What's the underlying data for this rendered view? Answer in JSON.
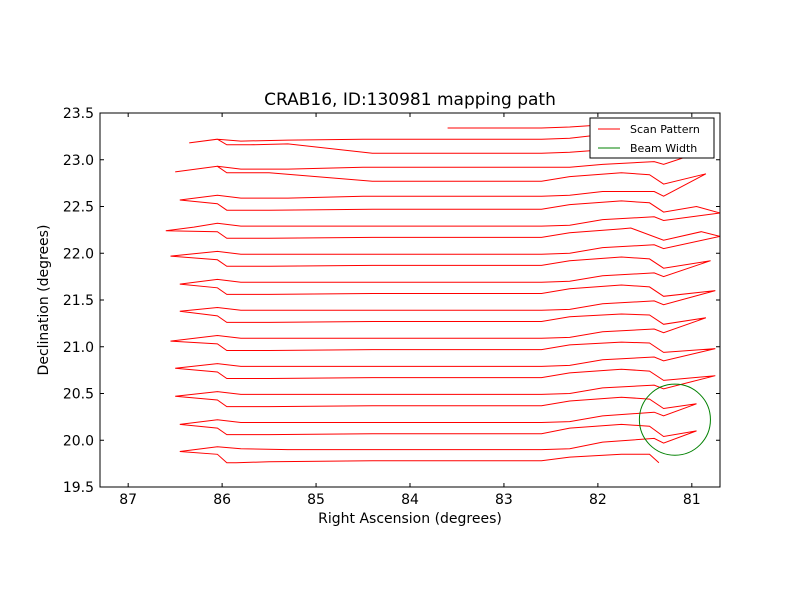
{
  "chart_data": {
    "type": "line",
    "title": "CRAB16, ID:130981 mapping path",
    "xlabel": "Right Ascension (degrees)",
    "ylabel": "Declination (degrees)",
    "xlim": [
      87.3,
      80.7
    ],
    "ylim": [
      19.5,
      23.5
    ],
    "x_ticks": [
      "87",
      "86",
      "85",
      "84",
      "83",
      "82",
      "81"
    ],
    "x_tick_values": [
      87,
      86,
      85,
      84,
      83,
      82,
      81
    ],
    "y_ticks": [
      "19.5",
      "20.0",
      "20.5",
      "21.0",
      "21.5",
      "22.0",
      "22.5",
      "23.0",
      "23.5"
    ],
    "y_tick_values": [
      19.5,
      20.0,
      20.5,
      21.0,
      21.5,
      22.0,
      22.5,
      23.0,
      23.5
    ],
    "grid": false,
    "legend_position": "top-right",
    "colors": {
      "scan": "#ff0000",
      "beam": "#008000"
    },
    "series": [
      {
        "name": "Scan Pattern",
        "color": "#ff0000",
        "points": [
          [
            81.35,
            19.76
          ],
          [
            81.45,
            19.85
          ],
          [
            81.75,
            19.85
          ],
          [
            82.3,
            19.82
          ],
          [
            82.6,
            19.78
          ],
          [
            83.45,
            19.78
          ],
          [
            84.4,
            19.78
          ],
          [
            85.5,
            19.77
          ],
          [
            85.85,
            19.76
          ],
          [
            85.95,
            19.76
          ],
          [
            86.05,
            19.85
          ],
          [
            86.45,
            19.88
          ],
          [
            86.05,
            19.93
          ],
          [
            85.8,
            19.91
          ],
          [
            85.3,
            19.9
          ],
          [
            84.5,
            19.9
          ],
          [
            83.2,
            19.9
          ],
          [
            82.6,
            19.9
          ],
          [
            82.3,
            19.91
          ],
          [
            81.95,
            19.98
          ],
          [
            81.4,
            20.02
          ],
          [
            81.3,
            19.97
          ],
          [
            80.95,
            20.1
          ],
          [
            81.3,
            20.04
          ],
          [
            81.45,
            20.15
          ],
          [
            81.75,
            20.17
          ],
          [
            82.3,
            20.13
          ],
          [
            82.6,
            20.07
          ],
          [
            83.45,
            20.07
          ],
          [
            84.4,
            20.07
          ],
          [
            85.5,
            20.06
          ],
          [
            85.85,
            20.06
          ],
          [
            85.95,
            20.06
          ],
          [
            86.05,
            20.13
          ],
          [
            86.45,
            20.17
          ],
          [
            86.05,
            20.22
          ],
          [
            85.8,
            20.19
          ],
          [
            85.3,
            20.19
          ],
          [
            84.5,
            20.19
          ],
          [
            83.2,
            20.19
          ],
          [
            82.6,
            20.19
          ],
          [
            82.3,
            20.2
          ],
          [
            81.95,
            20.26
          ],
          [
            81.4,
            20.3
          ],
          [
            81.3,
            20.26
          ],
          [
            80.95,
            20.39
          ],
          [
            81.3,
            20.34
          ],
          [
            81.45,
            20.44
          ],
          [
            81.75,
            20.46
          ],
          [
            82.3,
            20.42
          ],
          [
            82.6,
            20.37
          ],
          [
            83.45,
            20.37
          ],
          [
            84.4,
            20.37
          ],
          [
            85.5,
            20.36
          ],
          [
            85.85,
            20.36
          ],
          [
            85.95,
            20.36
          ],
          [
            86.05,
            20.43
          ],
          [
            86.5,
            20.47
          ],
          [
            86.05,
            20.52
          ],
          [
            85.8,
            20.49
          ],
          [
            85.3,
            20.49
          ],
          [
            84.5,
            20.49
          ],
          [
            83.2,
            20.49
          ],
          [
            82.6,
            20.49
          ],
          [
            82.3,
            20.5
          ],
          [
            81.95,
            20.56
          ],
          [
            81.4,
            20.59
          ],
          [
            81.3,
            20.55
          ],
          [
            80.75,
            20.69
          ],
          [
            81.3,
            20.64
          ],
          [
            81.45,
            20.74
          ],
          [
            81.75,
            20.76
          ],
          [
            82.3,
            20.72
          ],
          [
            82.6,
            20.67
          ],
          [
            83.45,
            20.67
          ],
          [
            84.4,
            20.67
          ],
          [
            85.5,
            20.66
          ],
          [
            85.85,
            20.66
          ],
          [
            85.95,
            20.66
          ],
          [
            86.05,
            20.73
          ],
          [
            86.5,
            20.77
          ],
          [
            86.05,
            20.82
          ],
          [
            85.8,
            20.79
          ],
          [
            85.3,
            20.79
          ],
          [
            84.5,
            20.79
          ],
          [
            83.2,
            20.79
          ],
          [
            82.6,
            20.79
          ],
          [
            82.3,
            20.8
          ],
          [
            81.95,
            20.86
          ],
          [
            81.4,
            20.89
          ],
          [
            81.3,
            20.85
          ],
          [
            80.75,
            20.98
          ],
          [
            81.3,
            20.94
          ],
          [
            81.45,
            21.04
          ],
          [
            81.75,
            21.05
          ],
          [
            82.3,
            21.02
          ],
          [
            82.6,
            20.97
          ],
          [
            83.45,
            20.97
          ],
          [
            84.4,
            20.97
          ],
          [
            85.5,
            20.96
          ],
          [
            85.85,
            20.96
          ],
          [
            85.95,
            20.96
          ],
          [
            86.05,
            21.03
          ],
          [
            86.55,
            21.06
          ],
          [
            86.05,
            21.12
          ],
          [
            85.8,
            21.09
          ],
          [
            85.3,
            21.09
          ],
          [
            84.5,
            21.09
          ],
          [
            83.2,
            21.09
          ],
          [
            82.6,
            21.09
          ],
          [
            82.3,
            21.1
          ],
          [
            81.95,
            21.16
          ],
          [
            81.4,
            21.19
          ],
          [
            81.3,
            21.15
          ],
          [
            80.85,
            21.31
          ],
          [
            81.3,
            21.24
          ],
          [
            81.45,
            21.34
          ],
          [
            81.75,
            21.35
          ],
          [
            82.3,
            21.32
          ],
          [
            82.6,
            21.27
          ],
          [
            83.45,
            21.27
          ],
          [
            84.4,
            21.27
          ],
          [
            85.5,
            21.26
          ],
          [
            85.85,
            21.26
          ],
          [
            85.95,
            21.26
          ],
          [
            86.05,
            21.33
          ],
          [
            86.45,
            21.38
          ],
          [
            86.05,
            21.42
          ],
          [
            85.8,
            21.39
          ],
          [
            85.3,
            21.39
          ],
          [
            84.5,
            21.39
          ],
          [
            83.2,
            21.39
          ],
          [
            82.6,
            21.39
          ],
          [
            82.3,
            21.4
          ],
          [
            81.95,
            21.46
          ],
          [
            81.4,
            21.49
          ],
          [
            81.3,
            21.45
          ],
          [
            80.75,
            21.6
          ],
          [
            81.3,
            21.54
          ],
          [
            81.45,
            21.64
          ],
          [
            81.75,
            21.66
          ],
          [
            82.3,
            21.62
          ],
          [
            82.6,
            21.57
          ],
          [
            83.45,
            21.57
          ],
          [
            84.4,
            21.57
          ],
          [
            85.5,
            21.56
          ],
          [
            85.85,
            21.56
          ],
          [
            85.95,
            21.56
          ],
          [
            86.05,
            21.63
          ],
          [
            86.45,
            21.67
          ],
          [
            86.05,
            21.72
          ],
          [
            85.8,
            21.69
          ],
          [
            85.3,
            21.69
          ],
          [
            84.5,
            21.69
          ],
          [
            83.2,
            21.69
          ],
          [
            82.6,
            21.69
          ],
          [
            82.3,
            21.7
          ],
          [
            81.95,
            21.76
          ],
          [
            81.4,
            21.79
          ],
          [
            81.3,
            21.75
          ],
          [
            80.8,
            21.92
          ],
          [
            81.3,
            21.84
          ],
          [
            81.45,
            21.94
          ],
          [
            81.75,
            21.96
          ],
          [
            82.3,
            21.92
          ],
          [
            82.6,
            21.87
          ],
          [
            83.45,
            21.87
          ],
          [
            84.4,
            21.87
          ],
          [
            85.5,
            21.86
          ],
          [
            85.85,
            21.86
          ],
          [
            85.95,
            21.86
          ],
          [
            86.05,
            21.93
          ],
          [
            86.55,
            21.97
          ],
          [
            86.05,
            22.02
          ],
          [
            85.8,
            21.99
          ],
          [
            85.3,
            21.99
          ],
          [
            84.5,
            21.99
          ],
          [
            83.2,
            21.99
          ],
          [
            82.6,
            21.99
          ],
          [
            82.3,
            22.0
          ],
          [
            81.95,
            22.06
          ],
          [
            81.4,
            22.09
          ],
          [
            81.3,
            22.05
          ],
          [
            80.7,
            22.18
          ],
          [
            80.9,
            22.23
          ],
          [
            81.3,
            22.14
          ],
          [
            81.65,
            22.27
          ],
          [
            81.75,
            22.26
          ],
          [
            82.3,
            22.22
          ],
          [
            82.6,
            22.17
          ],
          [
            83.45,
            22.17
          ],
          [
            84.4,
            22.17
          ],
          [
            85.5,
            22.16
          ],
          [
            85.85,
            22.16
          ],
          [
            85.95,
            22.16
          ],
          [
            86.05,
            22.23
          ],
          [
            86.6,
            22.24
          ],
          [
            86.3,
            22.28
          ],
          [
            86.05,
            22.32
          ],
          [
            85.8,
            22.29
          ],
          [
            85.3,
            22.29
          ],
          [
            84.5,
            22.29
          ],
          [
            83.2,
            22.29
          ],
          [
            82.6,
            22.29
          ],
          [
            82.3,
            22.3
          ],
          [
            81.95,
            22.36
          ],
          [
            81.4,
            22.39
          ],
          [
            81.3,
            22.35
          ],
          [
            80.7,
            22.43
          ],
          [
            80.95,
            22.5
          ],
          [
            81.3,
            22.44
          ],
          [
            81.45,
            22.54
          ],
          [
            81.75,
            22.56
          ],
          [
            82.3,
            22.52
          ],
          [
            82.6,
            22.47
          ],
          [
            83.45,
            22.47
          ],
          [
            84.4,
            22.47
          ],
          [
            85.5,
            22.46
          ],
          [
            85.85,
            22.46
          ],
          [
            85.95,
            22.46
          ],
          [
            86.05,
            22.53
          ],
          [
            86.45,
            22.57
          ],
          [
            86.05,
            22.62
          ],
          [
            85.8,
            22.59
          ],
          [
            85.3,
            22.59
          ],
          [
            84.5,
            22.61
          ],
          [
            83.2,
            22.61
          ],
          [
            82.6,
            22.61
          ],
          [
            82.3,
            22.62
          ],
          [
            81.95,
            22.66
          ],
          [
            81.4,
            22.66
          ],
          [
            81.3,
            22.61
          ],
          [
            80.85,
            22.85
          ],
          [
            81.3,
            22.74
          ],
          [
            81.45,
            22.84
          ],
          [
            81.75,
            22.86
          ],
          [
            82.3,
            22.82
          ],
          [
            82.6,
            22.77
          ],
          [
            83.45,
            22.77
          ],
          [
            84.4,
            22.77
          ],
          [
            85.5,
            22.86
          ],
          [
            85.85,
            22.86
          ],
          [
            85.95,
            22.86
          ],
          [
            86.05,
            22.93
          ],
          [
            86.5,
            22.87
          ],
          [
            86.05,
            22.93
          ],
          [
            85.8,
            22.9
          ],
          [
            85.3,
            22.9
          ],
          [
            84.5,
            22.92
          ],
          [
            83.2,
            22.92
          ],
          [
            82.6,
            22.92
          ],
          [
            82.3,
            22.92
          ],
          [
            81.95,
            22.95
          ],
          [
            81.4,
            22.98
          ],
          [
            81.3,
            22.95
          ],
          [
            80.85,
            23.1
          ],
          [
            81.3,
            23.05
          ],
          [
            81.5,
            23.12
          ],
          [
            81.75,
            23.12
          ],
          [
            82.3,
            23.08
          ],
          [
            82.6,
            23.07
          ],
          [
            83.45,
            23.07
          ],
          [
            84.4,
            23.07
          ],
          [
            85.3,
            23.17
          ],
          [
            85.7,
            23.16
          ],
          [
            85.95,
            23.16
          ],
          [
            86.05,
            23.22
          ],
          [
            86.35,
            23.18
          ],
          [
            86.05,
            23.22
          ],
          [
            85.8,
            23.2
          ],
          [
            85.3,
            23.21
          ],
          [
            84.5,
            23.22
          ],
          [
            83.2,
            23.22
          ],
          [
            82.6,
            23.22
          ],
          [
            82.3,
            23.23
          ],
          [
            81.95,
            23.27
          ],
          [
            81.4,
            23.29
          ],
          [
            81.3,
            23.25
          ],
          [
            81.35,
            23.35
          ],
          [
            81.55,
            23.4
          ],
          [
            81.85,
            23.38
          ],
          [
            82.3,
            23.35
          ],
          [
            82.6,
            23.34
          ],
          [
            83.6,
            23.34
          ]
        ]
      }
    ],
    "beam": {
      "name": "Beam Width",
      "color": "#008000",
      "center": [
        81.18,
        20.22
      ],
      "radius_deg": 0.38
    }
  }
}
